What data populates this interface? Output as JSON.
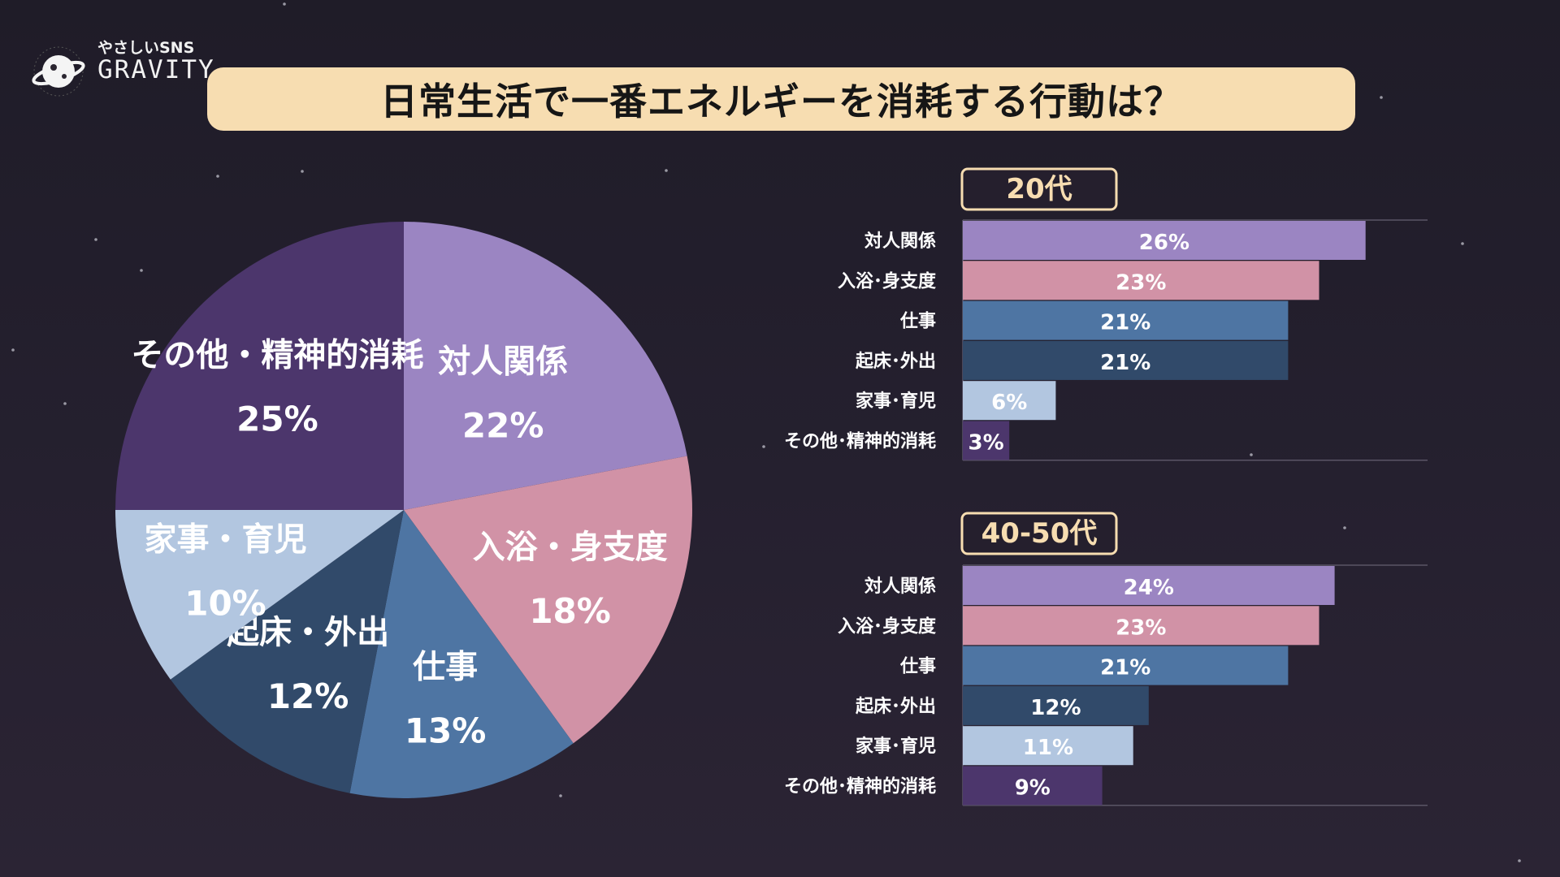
{
  "logo": {
    "small": "やさしいSNS",
    "big": "GRAVITY"
  },
  "title": "日常生活で一番エネルギーを消耗する行動は？",
  "chart_data": [
    {
      "type": "pie",
      "title": "",
      "slices": [
        {
          "label": "対人関係",
          "value": 22,
          "display": "22%",
          "color": "#9b85c2"
        },
        {
          "label": "入浴・身支度",
          "value": 18,
          "display": "18%",
          "color": "#d192a6"
        },
        {
          "label": "仕事",
          "value": 13,
          "display": "13%",
          "color": "#4e75a3"
        },
        {
          "label": "起床・外出",
          "value": 12,
          "display": "12%",
          "color": "#314a6a"
        },
        {
          "label": "家事・育児",
          "value": 10,
          "display": "10%",
          "color": "#b2c6e0"
        },
        {
          "label": "その他・精神的消耗",
          "value": 25,
          "display": "25%",
          "color": "#4c366c"
        }
      ]
    },
    {
      "type": "bar",
      "orientation": "horizontal",
      "title": "20代",
      "xlim": [
        0,
        30
      ],
      "categories": [
        "対人関係",
        "入浴･身支度",
        "仕事",
        "起床･外出",
        "家事･育児",
        "その他･精神的消耗"
      ],
      "values": [
        26,
        23,
        21,
        21,
        6,
        3
      ],
      "labels": [
        "26%",
        "23%",
        "21%",
        "21%",
        "6%",
        "3%"
      ],
      "colors": [
        "#9b85c2",
        "#d192a6",
        "#4e75a3",
        "#314a6a",
        "#b2c6e0",
        "#4c366c"
      ]
    },
    {
      "type": "bar",
      "orientation": "horizontal",
      "title": "40-50代",
      "xlim": [
        0,
        30
      ],
      "categories": [
        "対人関係",
        "入浴･身支度",
        "仕事",
        "起床･外出",
        "家事･育児",
        "その他･精神的消耗"
      ],
      "values": [
        24,
        23,
        21,
        12,
        11,
        9
      ],
      "labels": [
        "24%",
        "23%",
        "21%",
        "12%",
        "11%",
        "9%"
      ],
      "colors": [
        "#9b85c2",
        "#d192a6",
        "#4e75a3",
        "#314a6a",
        "#b2c6e0",
        "#4c366c"
      ]
    }
  ]
}
